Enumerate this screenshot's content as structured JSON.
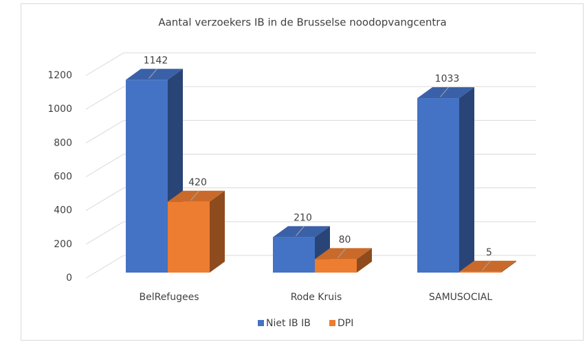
{
  "chart_data": {
    "type": "bar3d",
    "title": "Aantal verzoekers IB in de Brusselse noodopvangcentra",
    "categories": [
      "BelRefugees",
      "Rode Kruis",
      "SAMUSOCIAL"
    ],
    "series": [
      {
        "name": "Niet IB IB",
        "color": "#4472c4",
        "values": [
          1142,
          210,
          1033
        ]
      },
      {
        "name": "DPI",
        "color": "#ed7d31",
        "values": [
          420,
          80,
          5
        ]
      }
    ],
    "ylim": [
      0,
      1200
    ],
    "yticks": [
      0,
      200,
      400,
      600,
      800,
      1000,
      1200
    ],
    "grid": true,
    "legend": "bottom"
  }
}
